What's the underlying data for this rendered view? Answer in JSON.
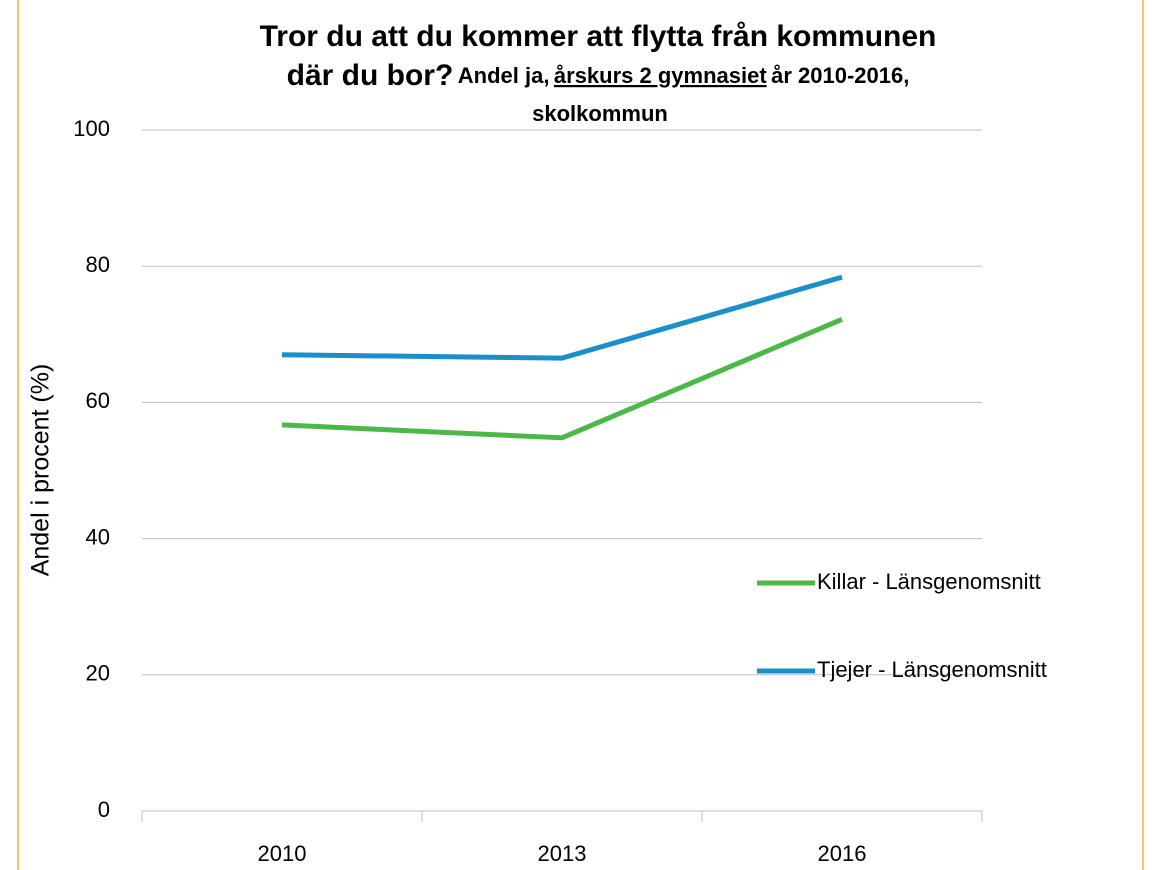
{
  "chart_data": {
    "type": "line",
    "title": "Tror du att du kommer att flytta från kommunen",
    "title_line2": "där du bor?",
    "subtitle": [
      "Andel ja,",
      "årskurs 2 gymnasiet",
      "år 2010-2016,",
      "skolkommun"
    ],
    "y_label": "Andel i procent (%)",
    "categories": [
      "2010",
      "2013",
      "2016"
    ],
    "series": [
      {
        "name": "Killar - Länsgenomsnitt",
        "color": "#4cb848",
        "values": [
          56.7,
          54.8,
          72.2
        ]
      },
      {
        "name": "Tjejer - Länsgenomsnitt",
        "color": "#1b8fc8",
        "values": [
          67.0,
          66.5,
          78.4
        ]
      }
    ],
    "ylim": [
      0,
      100
    ],
    "yticks": [
      0,
      20,
      40,
      60,
      80,
      100
    ],
    "grid": true,
    "legend": "right"
  }
}
